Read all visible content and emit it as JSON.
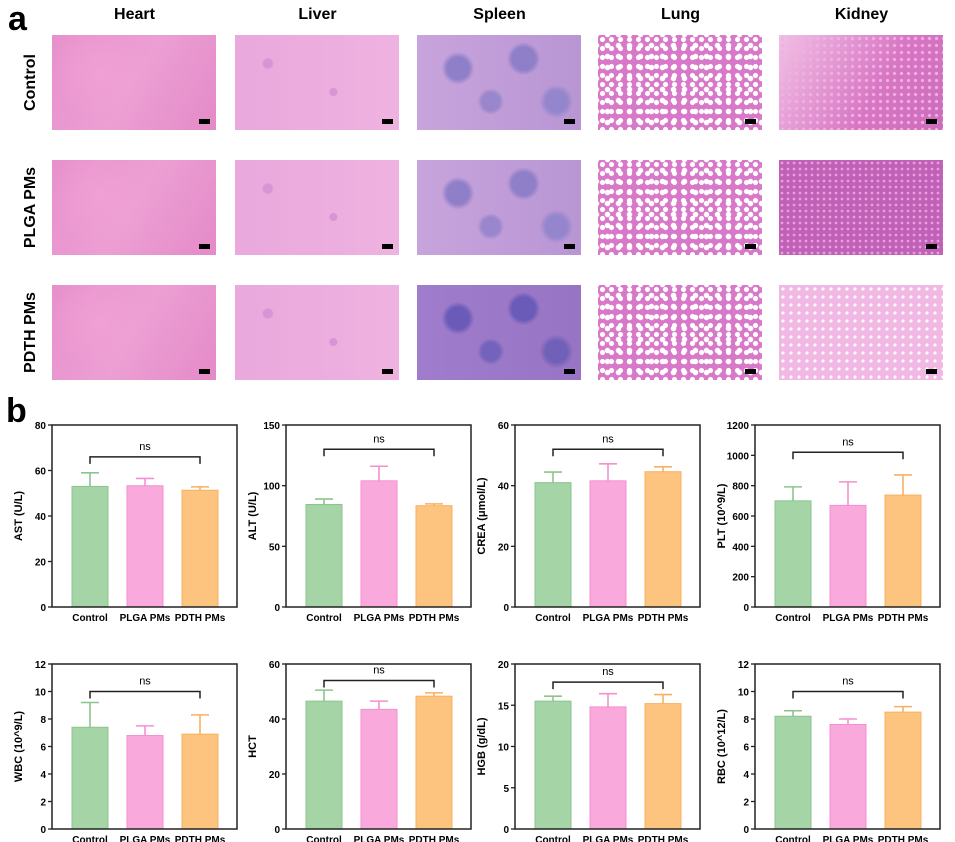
{
  "panel_a": {
    "label": "a",
    "columns": [
      "Heart",
      "Liver",
      "Spleen",
      "Lung",
      "Kidney"
    ],
    "rows": [
      "Control",
      "PLGA PMs",
      "PDTH PMs"
    ]
  },
  "panel_b": {
    "label": "b"
  },
  "colors": {
    "Control": "#a5d5a6",
    "PLGA PMs": "#f9a9dc",
    "PDTH PMs": "#fdc47f"
  },
  "chart_data": [
    {
      "type": "bar",
      "ylabel": "AST (U/L)",
      "categories": [
        "Control",
        "PLGA PMs",
        "PDTH PMs"
      ],
      "values": [
        53,
        53.3,
        51.3
      ],
      "errors": [
        6,
        3.2,
        1.5
      ],
      "ylim": [
        0,
        80
      ],
      "yticks": [
        0,
        20,
        40,
        60,
        80
      ],
      "annotation": {
        "text": "ns",
        "from": "Control",
        "to": "PDTH PMs",
        "y": 66
      }
    },
    {
      "type": "bar",
      "ylabel": "ALT (U/L)",
      "categories": [
        "Control",
        "PLGA PMs",
        "PDTH PMs"
      ],
      "values": [
        84.5,
        104,
        83.5
      ],
      "errors": [
        4.5,
        12,
        1.5
      ],
      "ylim": [
        0,
        150
      ],
      "yticks": [
        0,
        50,
        100,
        150
      ],
      "annotation": {
        "text": "ns",
        "from": "Control",
        "to": "PDTH PMs",
        "y": 130
      }
    },
    {
      "type": "bar",
      "ylabel": "CREA (μmol/L)",
      "categories": [
        "Control",
        "PLGA PMs",
        "PDTH PMs"
      ],
      "values": [
        41,
        41.6,
        44.6
      ],
      "errors": [
        3.5,
        5.6,
        1.6
      ],
      "ylim": [
        0,
        60
      ],
      "yticks": [
        0,
        20,
        40,
        60
      ],
      "annotation": {
        "text": "ns",
        "from": "Control",
        "to": "PDTH PMs",
        "y": 52
      }
    },
    {
      "type": "bar",
      "ylabel": "PLT (10^9/L)",
      "categories": [
        "Control",
        "PLGA PMs",
        "PDTH PMs"
      ],
      "values": [
        700,
        670,
        738
      ],
      "errors": [
        92,
        155,
        133
      ],
      "ylim": [
        0,
        1200
      ],
      "yticks": [
        0,
        200,
        400,
        600,
        800,
        1000,
        1200
      ],
      "annotation": {
        "text": "ns",
        "from": "Control",
        "to": "PDTH PMs",
        "y": 1020
      }
    },
    {
      "type": "bar",
      "ylabel": "WBC (10^9/L)",
      "categories": [
        "Control",
        "PLGA PMs",
        "PDTH PMs"
      ],
      "values": [
        7.4,
        6.8,
        6.9
      ],
      "errors": [
        1.8,
        0.7,
        1.4
      ],
      "ylim": [
        0,
        12
      ],
      "yticks": [
        0,
        2,
        4,
        6,
        8,
        10,
        12
      ],
      "annotation": {
        "text": "ns",
        "from": "Control",
        "to": "PDTH PMs",
        "y": 10
      }
    },
    {
      "type": "bar",
      "ylabel": "HCT",
      "categories": [
        "Control",
        "PLGA PMs",
        "PDTH PMs"
      ],
      "values": [
        46.5,
        43.5,
        48.3
      ],
      "errors": [
        4,
        3,
        1.2
      ],
      "ylim": [
        0,
        60
      ],
      "yticks": [
        0,
        20,
        40,
        60
      ],
      "annotation": {
        "text": "ns",
        "from": "Control",
        "to": "PDTH PMs",
        "y": 54
      }
    },
    {
      "type": "bar",
      "ylabel": "HGB (g/dL)",
      "categories": [
        "Control",
        "PLGA PMs",
        "PDTH PMs"
      ],
      "values": [
        15.5,
        14.8,
        15.2
      ],
      "errors": [
        0.6,
        1.6,
        1.1
      ],
      "ylim": [
        0,
        20
      ],
      "yticks": [
        0,
        5,
        10,
        15,
        20
      ],
      "annotation": {
        "text": "ns",
        "from": "Control",
        "to": "PDTH PMs",
        "y": 17.8
      }
    },
    {
      "type": "bar",
      "ylabel": "RBC (10^12/L)",
      "categories": [
        "Control",
        "PLGA PMs",
        "PDTH PMs"
      ],
      "values": [
        8.2,
        7.6,
        8.5
      ],
      "errors": [
        0.4,
        0.4,
        0.4
      ],
      "ylim": [
        0,
        12
      ],
      "yticks": [
        0,
        2,
        4,
        6,
        8,
        10,
        12
      ],
      "annotation": {
        "text": "ns",
        "from": "Control",
        "to": "PDTH PMs",
        "y": 10
      }
    }
  ]
}
